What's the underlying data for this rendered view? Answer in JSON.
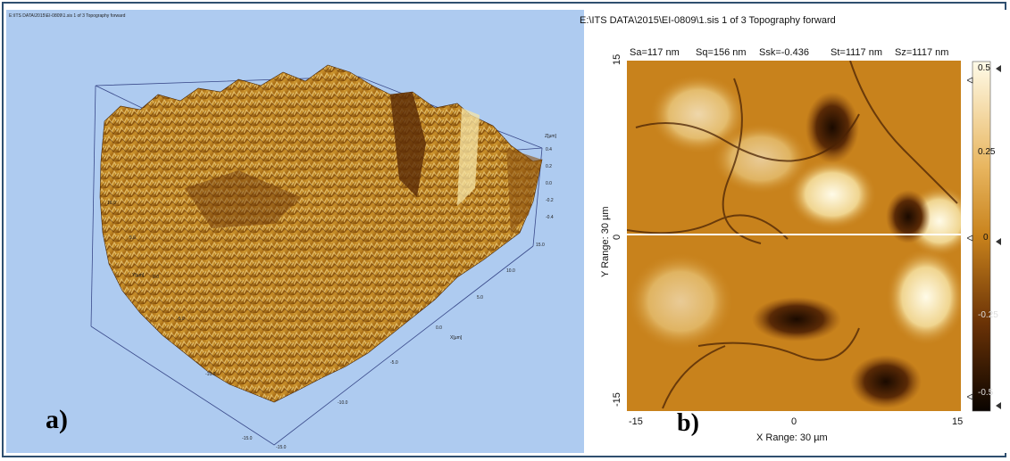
{
  "left_panel": {
    "header": "E:\\ITS DATA\\2015\\EI-0809\\1.sis 1 of 3 Topography forward",
    "panel_label": "a)",
    "z_axis_title": "Z[µm]",
    "z_ticks": [
      "0.4",
      "0.2",
      "0.0",
      "-0.2",
      "-0.4"
    ],
    "y_axis_title": "Y[µm]",
    "y_ticks": [
      "10.0",
      "5.0",
      "0.0",
      "-5.0",
      "-10.0",
      "-15.0"
    ],
    "x_axis_title": "X[µm]",
    "x_ticks": [
      "15.0",
      "10.0",
      "5.0",
      "0.0",
      "-5.0",
      "-10.0",
      "-15.0"
    ],
    "colors": {
      "background": "#aecbf0",
      "surface_dark": "#6b3a0a",
      "surface_mid": "#b8781a",
      "surface_light": "#f2d890"
    }
  },
  "right_panel": {
    "header": "E:\\ITS DATA\\2015\\EI-0809\\1.sis 1 of 3 Topography forward",
    "stats": {
      "sa": "Sa=117 nm",
      "sq": "Sq=156 nm",
      "ssk": "Ssk=-0.436",
      "st": "St=1117 nm",
      "sz": "Sz=1117 nm"
    },
    "y_axis_title": "Y Range: 30 µm",
    "y_ticks": {
      "top": "15",
      "mid": "0",
      "bottom": "-15"
    },
    "x_axis_title": "X Range: 30 µm",
    "x_ticks": {
      "left": "-15",
      "mid": "0",
      "right": "15"
    },
    "colorbar_ticks": {
      "t1": "0.5",
      "t2": "0.25",
      "t3": "0",
      "t4": "-0.25",
      "t5": "-0.5"
    },
    "panel_label": "b)",
    "colors": {
      "high": "#fffbe8",
      "mid": "#c8821c",
      "low": "#1a0a00",
      "scan_line": "#ffffff"
    }
  }
}
